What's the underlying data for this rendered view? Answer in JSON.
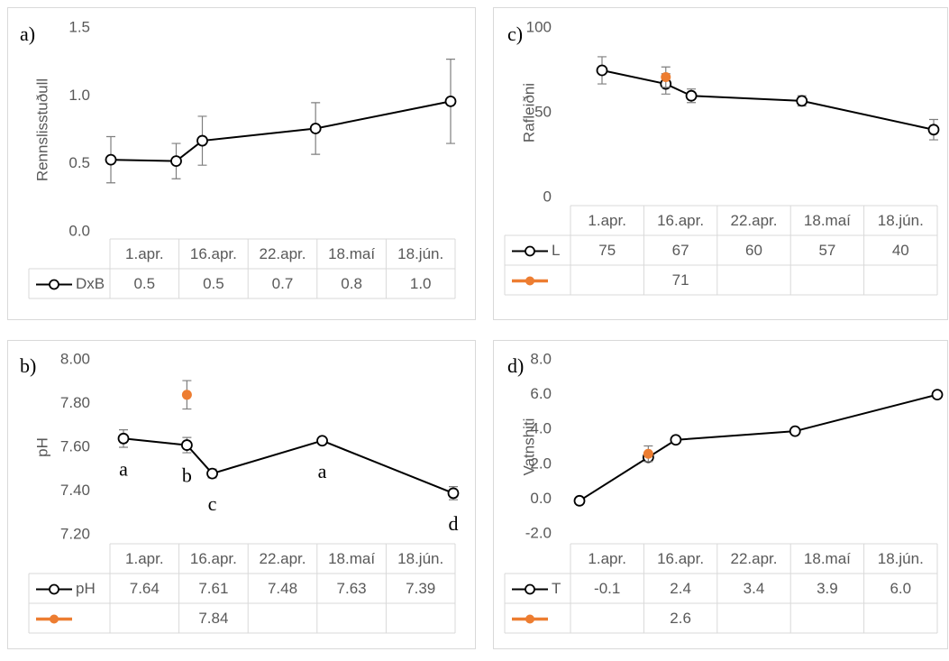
{
  "chart_data": [
    {
      "type": "line",
      "label": "a)",
      "y_label": "Rennslisstuðull",
      "categories": [
        "1.apr.",
        "16.apr.",
        "22.apr.",
        "18.maí",
        "18.jún."
      ],
      "x": [
        0,
        15,
        21,
        47,
        78
      ],
      "ylim": [
        0,
        1.5
      ],
      "yticks": [
        {
          "value": 0,
          "label": "0.0"
        },
        {
          "value": 0.5,
          "label": "0.5"
        },
        {
          "value": 1,
          "label": "1.0"
        },
        {
          "value": 1.5,
          "label": "1.5"
        }
      ],
      "series": [
        {
          "name": "DxB",
          "color": "#000000",
          "values": [
            0.53,
            0.52,
            0.67,
            0.76,
            0.96
          ],
          "value_labels": [
            "0.5",
            "0.5",
            "0.7",
            "0.8",
            "1.0"
          ],
          "errors": [
            0.17,
            0.13,
            0.18,
            0.19,
            0.31
          ]
        }
      ]
    },
    {
      "type": "line",
      "label": "b)",
      "y_label": "pH",
      "categories": [
        "1.apr.",
        "16.apr.",
        "22.apr.",
        "18.maí",
        "18.jún."
      ],
      "x": [
        0,
        15,
        21,
        47,
        78
      ],
      "ylim": [
        7.2,
        8.0
      ],
      "yticks": [
        {
          "value": 7.2,
          "label": "7.20"
        },
        {
          "value": 7.4,
          "label": "7.40"
        },
        {
          "value": 7.6,
          "label": "7.60"
        },
        {
          "value": 7.8,
          "label": "7.80"
        },
        {
          "value": 8.0,
          "label": "8.00"
        }
      ],
      "annotations": [
        "a",
        "b",
        "c",
        "a",
        "d"
      ],
      "series": [
        {
          "name": "pH",
          "color": "#000000",
          "values": [
            7.64,
            7.61,
            7.48,
            7.63,
            7.39
          ],
          "errors": [
            0.04,
            0.035,
            0.02,
            0.008,
            0.03
          ]
        },
        {
          "color": "#ed7d31",
          "values": [
            null,
            7.84,
            null,
            null,
            null
          ],
          "errors": [
            null,
            0.065,
            null,
            null,
            null
          ]
        }
      ]
    },
    {
      "type": "line",
      "label": "c)",
      "y_label": "Rafleiðni",
      "categories": [
        "1.apr.",
        "16.apr.",
        "22.apr.",
        "18.maí",
        "18.jún."
      ],
      "x": [
        0,
        15,
        21,
        47,
        78
      ],
      "ylim": [
        0,
        100
      ],
      "yticks": [
        0,
        50,
        100
      ],
      "series": [
        {
          "name": "L",
          "color": "#000000",
          "values": [
            75,
            67,
            60,
            57,
            40
          ],
          "errors": [
            8,
            6,
            4,
            3,
            6
          ]
        },
        {
          "color": "#ed7d31",
          "values": [
            null,
            71,
            null,
            null,
            null
          ],
          "errors": [
            null,
            6,
            null,
            null,
            null
          ]
        }
      ]
    },
    {
      "type": "line",
      "label": "d)",
      "y_label": "Vatnshiti",
      "categories": [
        "1.apr.",
        "16.apr.",
        "22.apr.",
        "18.maí",
        "18.jún."
      ],
      "x": [
        0,
        15,
        21,
        47,
        78
      ],
      "ylim": [
        -2,
        8
      ],
      "yticks": [
        {
          "value": -2,
          "label": "-2.0"
        },
        {
          "value": 0,
          "label": "0.0"
        },
        {
          "value": 2,
          "label": "2.0"
        },
        {
          "value": 4,
          "label": "4.0"
        },
        {
          "value": 6,
          "label": "6.0"
        },
        {
          "value": 8,
          "label": "8.0"
        }
      ],
      "series": [
        {
          "name": "T",
          "color": "#000000",
          "values": [
            -0.1,
            2.4,
            3.4,
            3.9,
            6.0
          ],
          "value_labels": [
            "-0.1",
            "2.4",
            "3.4",
            "3.9",
            "6.0"
          ]
        },
        {
          "color": "#ed7d31",
          "values": [
            null,
            2.6,
            null,
            null,
            null
          ],
          "errors": [
            null,
            0.45,
            null,
            null,
            null
          ]
        }
      ]
    }
  ]
}
